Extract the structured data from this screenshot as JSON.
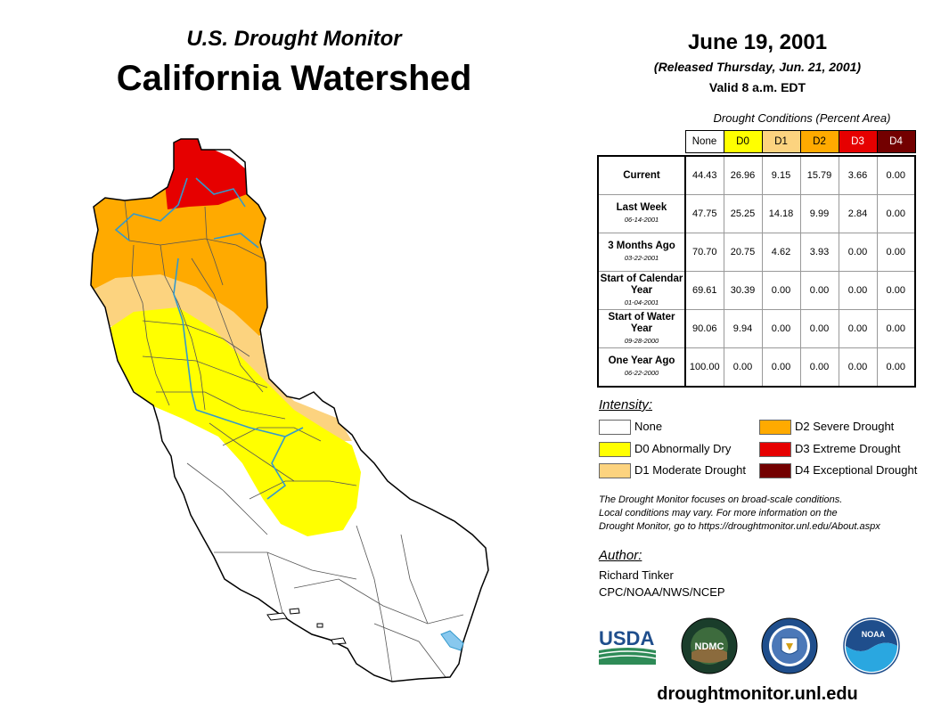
{
  "header": {
    "subtitle": "U.S. Drought Monitor",
    "title": "California Watershed"
  },
  "info": {
    "date": "June 19, 2001",
    "released": "(Released Thursday, Jun. 21, 2001)",
    "valid": "Valid 8 a.m. EDT"
  },
  "table": {
    "caption": "Drought Conditions (Percent Area)",
    "columns": [
      "None",
      "D0",
      "D1",
      "D2",
      "D3",
      "D4"
    ],
    "column_colors": [
      "#ffffff",
      "#ffff00",
      "#fcd37f",
      "#ffaa00",
      "#e60000",
      "#730000"
    ],
    "rows": [
      {
        "label": "Current",
        "date": "",
        "values": [
          "44.43",
          "26.96",
          "9.15",
          "15.79",
          "3.66",
          "0.00"
        ]
      },
      {
        "label": "Last Week",
        "date": "06-14-2001",
        "values": [
          "47.75",
          "25.25",
          "14.18",
          "9.99",
          "2.84",
          "0.00"
        ]
      },
      {
        "label": "3 Months Ago",
        "date": "03-22-2001",
        "values": [
          "70.70",
          "20.75",
          "4.62",
          "3.93",
          "0.00",
          "0.00"
        ]
      },
      {
        "label": "Start of Calendar Year",
        "date": "01-04-2001",
        "values": [
          "69.61",
          "30.39",
          "0.00",
          "0.00",
          "0.00",
          "0.00"
        ]
      },
      {
        "label": "Start of Water Year",
        "date": "09-28-2000",
        "values": [
          "90.06",
          "9.94",
          "0.00",
          "0.00",
          "0.00",
          "0.00"
        ]
      },
      {
        "label": "One Year Ago",
        "date": "06-22-2000",
        "values": [
          "100.00",
          "0.00",
          "0.00",
          "0.00",
          "0.00",
          "0.00"
        ]
      }
    ]
  },
  "legend": {
    "heading": "Intensity:",
    "items": [
      {
        "label": "None",
        "color": "#ffffff"
      },
      {
        "label": "D0 Abnormally Dry",
        "color": "#ffff00"
      },
      {
        "label": "D1 Moderate Drought",
        "color": "#fcd37f"
      },
      {
        "label": "D2 Severe Drought",
        "color": "#ffaa00"
      },
      {
        "label": "D3 Extreme Drought",
        "color": "#e60000"
      },
      {
        "label": "D4 Exceptional Drought",
        "color": "#730000"
      }
    ]
  },
  "note": {
    "line1": "The Drought Monitor focuses on broad-scale conditions.",
    "line2": "Local conditions may vary. For more information on the",
    "line3": "Drought Monitor, go to https://droughtmonitor.unl.edu/About.aspx"
  },
  "author": {
    "heading": "Author:",
    "name": "Richard Tinker",
    "org": "CPC/NOAA/NWS/NCEP"
  },
  "logos": {
    "usda": "USDA",
    "ndmc": "NDMC",
    "noaa": "NOAA"
  },
  "footer": {
    "url": "droughtmonitor.unl.edu"
  }
}
